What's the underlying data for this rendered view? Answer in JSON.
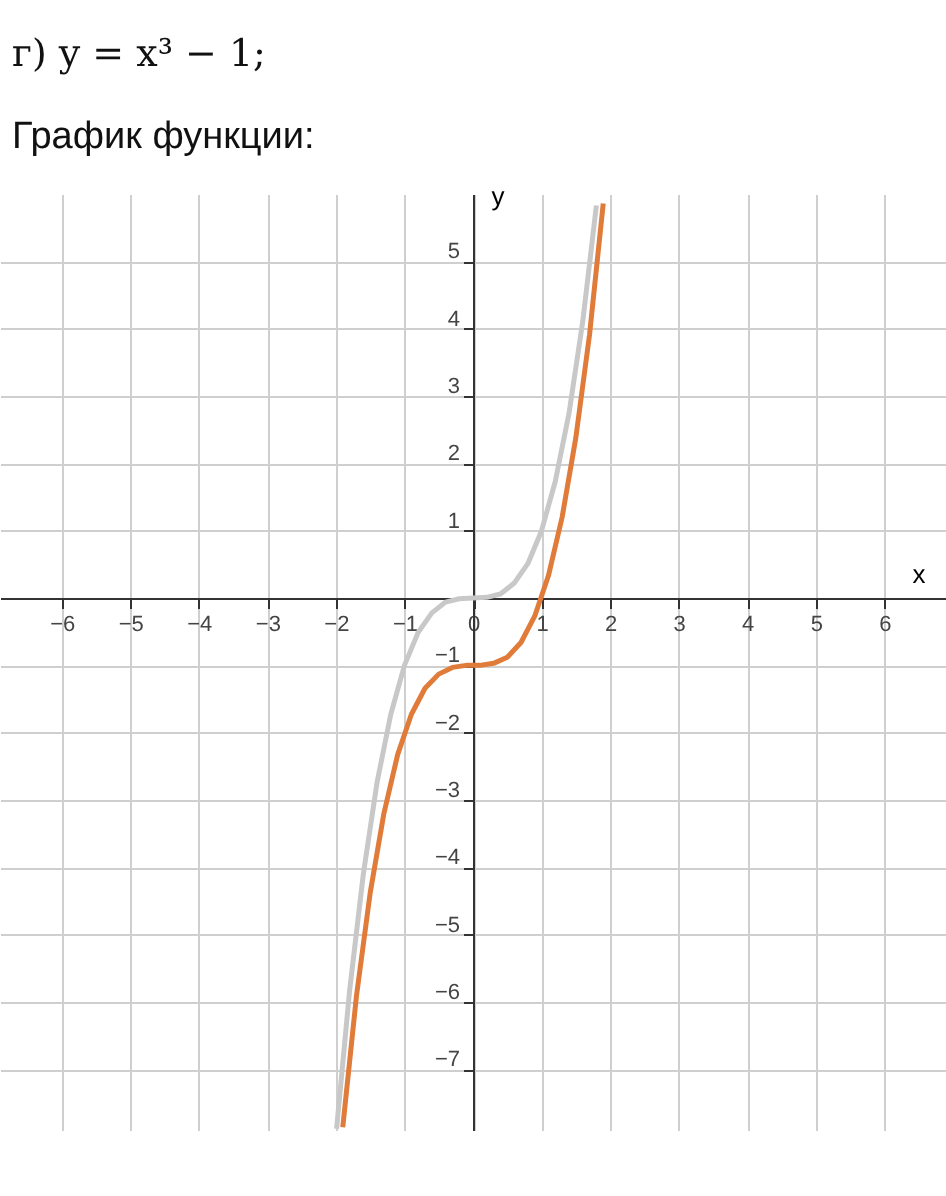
{
  "chart_data": {
    "type": "line",
    "title": "г) y = x³ − 1;",
    "subtitle": "График функции:",
    "xlabel": "x",
    "ylabel": "y",
    "xlim": [
      -6.9,
      6.9
    ],
    "ylim": [
      -7.9,
      6
    ],
    "xticks": [
      -6,
      -5,
      -4,
      -3,
      -2,
      -1,
      0,
      1,
      2,
      3,
      4,
      5,
      6
    ],
    "yticks": [
      -7,
      -6,
      -5,
      -4,
      -3,
      -2,
      -1,
      1,
      2,
      3,
      4,
      5
    ],
    "grid": true,
    "series": [
      {
        "color": "#c8c8c8",
        "x": [
          -1.99,
          -1.8,
          -1.6,
          -1.4,
          -1.2,
          -1,
          -0.8,
          -0.6,
          -0.4,
          -0.2,
          0,
          0.2,
          0.4,
          0.6,
          0.8,
          1,
          1.2,
          1.4,
          1.6,
          1.8
        ],
        "values": [
          -7.88,
          -5.83,
          -4.1,
          -2.74,
          -1.73,
          -1,
          -0.51,
          -0.22,
          -0.06,
          -0.01,
          0,
          0.01,
          0.06,
          0.22,
          0.51,
          1,
          1.73,
          2.74,
          4.1,
          5.83
        ]
      },
      {
        "color": "#e07b39",
        "x": [
          -1.9,
          -1.7,
          -1.5,
          -1.3,
          -1.1,
          -0.9,
          -0.7,
          -0.5,
          -0.3,
          -0.1,
          0,
          0.1,
          0.3,
          0.5,
          0.7,
          0.9,
          1.1,
          1.3,
          1.5,
          1.7,
          1.9
        ],
        "values": [
          -7.86,
          -5.91,
          -4.38,
          -3.2,
          -2.33,
          -1.73,
          -1.34,
          -1.13,
          -1.03,
          -1,
          -1,
          -1,
          -0.97,
          -0.88,
          -0.66,
          -0.27,
          0.33,
          1.2,
          2.38,
          3.91,
          5.86
        ]
      }
    ]
  }
}
